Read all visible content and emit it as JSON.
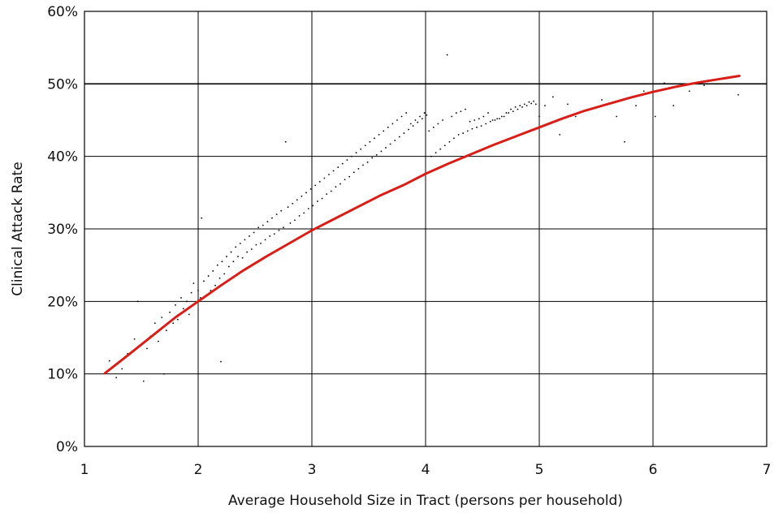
{
  "chart_data": {
    "type": "scatter",
    "title": "",
    "xlabel": "Average Household Size in Tract (persons per household)",
    "ylabel": "Clinical Attack Rate",
    "xlim": [
      1,
      7
    ],
    "ylim": [
      0,
      0.6
    ],
    "x_ticks": [
      1,
      2,
      3,
      4,
      5,
      6,
      7
    ],
    "x_tick_labels": [
      "1",
      "2",
      "3",
      "4",
      "5",
      "6",
      "7"
    ],
    "y_ticks": [
      0,
      0.1,
      0.2,
      0.3,
      0.4,
      0.5,
      0.6
    ],
    "y_tick_labels": [
      "0%",
      "10%",
      "20%",
      "30%",
      "40%",
      "50%",
      "60%"
    ],
    "grid": true,
    "legend": "none",
    "colors": {
      "points": "#000000",
      "fit_line": "#d91e18",
      "grid": "#000000",
      "frame": "#000000"
    },
    "series": [
      {
        "type": "scatter",
        "points": [
          [
            1.22,
            0.118
          ],
          [
            1.28,
            0.095
          ],
          [
            1.33,
            0.107
          ],
          [
            1.38,
            0.128
          ],
          [
            1.44,
            0.148
          ],
          [
            1.47,
            0.2
          ],
          [
            1.52,
            0.09
          ],
          [
            1.55,
            0.135
          ],
          [
            1.58,
            0.152
          ],
          [
            1.62,
            0.17
          ],
          [
            1.65,
            0.145
          ],
          [
            1.68,
            0.178
          ],
          [
            1.7,
            0.1
          ],
          [
            1.72,
            0.16
          ],
          [
            1.75,
            0.185
          ],
          [
            1.78,
            0.17
          ],
          [
            1.8,
            0.195
          ],
          [
            1.82,
            0.175
          ],
          [
            1.85,
            0.205
          ],
          [
            1.87,
            0.19
          ],
          [
            1.9,
            0.2
          ],
          [
            1.92,
            0.182
          ],
          [
            1.94,
            0.212
          ],
          [
            1.96,
            0.225
          ],
          [
            1.98,
            0.198
          ],
          [
            2.0,
            0.215
          ],
          [
            2.02,
            0.205
          ],
          [
            2.03,
            0.315
          ],
          [
            2.05,
            0.228
          ],
          [
            2.07,
            0.208
          ],
          [
            2.09,
            0.235
          ],
          [
            2.11,
            0.215
          ],
          [
            2.13,
            0.242
          ],
          [
            2.15,
            0.222
          ],
          [
            2.17,
            0.25
          ],
          [
            2.19,
            0.232
          ],
          [
            2.2,
            0.117
          ],
          [
            2.21,
            0.255
          ],
          [
            2.23,
            0.238
          ],
          [
            2.25,
            0.262
          ],
          [
            2.27,
            0.248
          ],
          [
            2.29,
            0.268
          ],
          [
            2.31,
            0.255
          ],
          [
            2.33,
            0.275
          ],
          [
            2.35,
            0.262
          ],
          [
            2.37,
            0.28
          ],
          [
            2.39,
            0.26
          ],
          [
            2.41,
            0.285
          ],
          [
            2.43,
            0.268
          ],
          [
            2.45,
            0.29
          ],
          [
            2.47,
            0.272
          ],
          [
            2.49,
            0.295
          ],
          [
            2.51,
            0.278
          ],
          [
            2.53,
            0.302
          ],
          [
            2.55,
            0.28
          ],
          [
            2.57,
            0.305
          ],
          [
            2.59,
            0.285
          ],
          [
            2.61,
            0.31
          ],
          [
            2.63,
            0.29
          ],
          [
            2.65,
            0.315
          ],
          [
            2.67,
            0.293
          ],
          [
            2.69,
            0.32
          ],
          [
            2.71,
            0.298
          ],
          [
            2.73,
            0.325
          ],
          [
            2.75,
            0.302
          ],
          [
            2.77,
            0.42
          ],
          [
            2.79,
            0.33
          ],
          [
            2.81,
            0.308
          ],
          [
            2.83,
            0.335
          ],
          [
            2.85,
            0.312
          ],
          [
            2.87,
            0.34
          ],
          [
            2.89,
            0.318
          ],
          [
            2.91,
            0.345
          ],
          [
            2.93,
            0.322
          ],
          [
            2.95,
            0.35
          ],
          [
            2.97,
            0.328
          ],
          [
            2.99,
            0.355
          ],
          [
            3.01,
            0.332
          ],
          [
            3.03,
            0.36
          ],
          [
            3.05,
            0.338
          ],
          [
            3.07,
            0.365
          ],
          [
            3.09,
            0.342
          ],
          [
            3.11,
            0.37
          ],
          [
            3.13,
            0.348
          ],
          [
            3.15,
            0.375
          ],
          [
            3.17,
            0.352
          ],
          [
            3.19,
            0.38
          ],
          [
            3.21,
            0.358
          ],
          [
            3.23,
            0.385
          ],
          [
            3.25,
            0.362
          ],
          [
            3.27,
            0.39
          ],
          [
            3.29,
            0.368
          ],
          [
            3.31,
            0.395
          ],
          [
            3.33,
            0.372
          ],
          [
            3.35,
            0.4
          ],
          [
            3.37,
            0.378
          ],
          [
            3.39,
            0.405
          ],
          [
            3.41,
            0.383
          ],
          [
            3.43,
            0.41
          ],
          [
            3.45,
            0.388
          ],
          [
            3.47,
            0.415
          ],
          [
            3.49,
            0.392
          ],
          [
            3.51,
            0.42
          ],
          [
            3.53,
            0.398
          ],
          [
            3.55,
            0.425
          ],
          [
            3.57,
            0.402
          ],
          [
            3.59,
            0.43
          ],
          [
            3.61,
            0.407
          ],
          [
            3.63,
            0.435
          ],
          [
            3.65,
            0.412
          ],
          [
            3.67,
            0.44
          ],
          [
            3.69,
            0.417
          ],
          [
            3.71,
            0.445
          ],
          [
            3.73,
            0.422
          ],
          [
            3.75,
            0.45
          ],
          [
            3.77,
            0.427
          ],
          [
            3.79,
            0.455
          ],
          [
            3.81,
            0.432
          ],
          [
            3.83,
            0.46
          ],
          [
            3.85,
            0.437
          ],
          [
            3.87,
            0.445
          ],
          [
            3.89,
            0.442
          ],
          [
            3.91,
            0.45
          ],
          [
            3.93,
            0.447
          ],
          [
            3.95,
            0.455
          ],
          [
            3.97,
            0.452
          ],
          [
            3.99,
            0.46
          ],
          [
            4.01,
            0.457
          ],
          [
            4.03,
            0.435
          ],
          [
            4.05,
            0.4
          ],
          [
            4.07,
            0.44
          ],
          [
            4.09,
            0.405
          ],
          [
            4.11,
            0.445
          ],
          [
            4.13,
            0.41
          ],
          [
            4.15,
            0.45
          ],
          [
            4.17,
            0.415
          ],
          [
            4.19,
            0.54
          ],
          [
            4.21,
            0.42
          ],
          [
            4.23,
            0.455
          ],
          [
            4.25,
            0.425
          ],
          [
            4.27,
            0.46
          ],
          [
            4.29,
            0.43
          ],
          [
            4.31,
            0.462
          ],
          [
            4.33,
            0.432
          ],
          [
            4.35,
            0.465
          ],
          [
            4.37,
            0.435
          ],
          [
            4.39,
            0.448
          ],
          [
            4.41,
            0.438
          ],
          [
            4.43,
            0.45
          ],
          [
            4.45,
            0.44
          ],
          [
            4.47,
            0.452
          ],
          [
            4.49,
            0.442
          ],
          [
            4.51,
            0.455
          ],
          [
            4.53,
            0.445
          ],
          [
            4.55,
            0.46
          ],
          [
            4.57,
            0.448
          ],
          [
            4.59,
            0.45
          ],
          [
            4.61,
            0.45
          ],
          [
            4.63,
            0.452
          ],
          [
            4.65,
            0.452
          ],
          [
            4.67,
            0.455
          ],
          [
            4.69,
            0.455
          ],
          [
            4.71,
            0.46
          ],
          [
            4.73,
            0.46
          ],
          [
            4.75,
            0.465
          ],
          [
            4.77,
            0.462
          ],
          [
            4.79,
            0.468
          ],
          [
            4.81,
            0.465
          ],
          [
            4.83,
            0.47
          ],
          [
            4.85,
            0.468
          ],
          [
            4.87,
            0.472
          ],
          [
            4.89,
            0.47
          ],
          [
            4.91,
            0.475
          ],
          [
            4.93,
            0.473
          ],
          [
            4.95,
            0.476
          ],
          [
            4.97,
            0.472
          ],
          [
            5.0,
            0.455
          ],
          [
            5.05,
            0.47
          ],
          [
            5.08,
            0.445
          ],
          [
            5.12,
            0.482
          ],
          [
            5.18,
            0.43
          ],
          [
            5.25,
            0.472
          ],
          [
            5.32,
            0.455
          ],
          [
            5.45,
            0.465
          ],
          [
            5.55,
            0.478
          ],
          [
            5.68,
            0.455
          ],
          [
            5.75,
            0.42
          ],
          [
            5.85,
            0.47
          ],
          [
            5.92,
            0.49
          ],
          [
            6.02,
            0.455
          ],
          [
            6.1,
            0.501
          ],
          [
            6.18,
            0.47
          ],
          [
            6.25,
            0.499
          ],
          [
            6.32,
            0.49
          ],
          [
            6.45,
            0.498
          ],
          [
            6.55,
            0.5
          ],
          [
            6.75,
            0.485
          ]
        ]
      },
      {
        "type": "line",
        "name": "",
        "x": [
          1.18,
          1.4,
          1.6,
          1.8,
          2.0,
          2.2,
          2.4,
          2.6,
          2.8,
          3.0,
          3.2,
          3.4,
          3.6,
          3.8,
          4.0,
          4.2,
          4.4,
          4.6,
          4.8,
          5.0,
          5.2,
          5.4,
          5.6,
          5.8,
          6.0,
          6.2,
          6.4,
          6.6,
          6.76
        ],
        "y": [
          0.101,
          0.128,
          0.153,
          0.178,
          0.2,
          0.222,
          0.243,
          0.262,
          0.28,
          0.298,
          0.314,
          0.33,
          0.346,
          0.36,
          0.376,
          0.39,
          0.403,
          0.416,
          0.428,
          0.44,
          0.452,
          0.463,
          0.472,
          0.481,
          0.489,
          0.496,
          0.502,
          0.507,
          0.511
        ]
      }
    ]
  }
}
